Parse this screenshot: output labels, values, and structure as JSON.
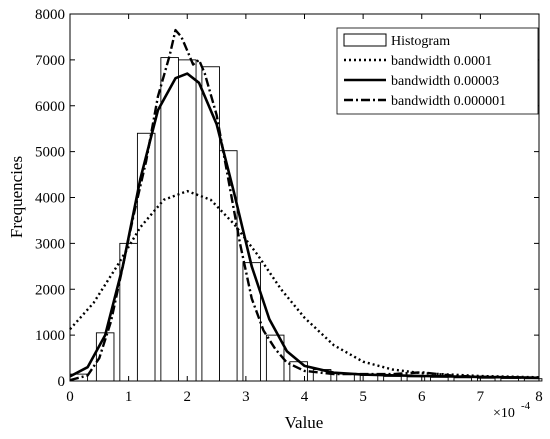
{
  "chart_data": {
    "type": "bar",
    "title": "",
    "xlabel": "Value",
    "ylabel": "Frequencies",
    "x_exponent_label": "×10",
    "x_exponent_power": "-4",
    "xlim": [
      0,
      8
    ],
    "ylim": [
      0,
      8000
    ],
    "x_ticks": [
      0,
      1,
      2,
      3,
      4,
      5,
      6,
      7,
      8
    ],
    "y_ticks": [
      0,
      1000,
      2000,
      3000,
      4000,
      5000,
      6000,
      7000,
      8000
    ],
    "legend_position": "top-right",
    "legend": [
      {
        "label": "Histogram",
        "style": "bar"
      },
      {
        "label": "bandwidth 0.0001",
        "style": "dotted"
      },
      {
        "label": "bandwidth 0.00003",
        "style": "solid"
      },
      {
        "label": "bandwidth 0.000001",
        "style": "dashdot"
      }
    ],
    "histogram": {
      "bin_width": 0.3,
      "bin_starts": [
        0.0,
        0.45,
        0.85,
        1.15,
        1.55,
        1.85,
        2.25,
        2.55,
        2.95,
        3.35,
        3.75,
        4.15,
        4.55,
        4.95,
        5.35,
        5.75,
        6.15,
        6.55,
        6.95,
        7.35,
        7.75
      ],
      "values": [
        150,
        1050,
        3000,
        5400,
        7050,
        7000,
        6850,
        5020,
        2580,
        1000,
        420,
        250,
        160,
        120,
        100,
        90,
        80,
        70,
        60,
        55,
        50
      ]
    },
    "series": [
      {
        "name": "bandwidth 0.0001",
        "style": "dotted",
        "x": [
          0,
          0.4,
          0.8,
          1.2,
          1.6,
          2.0,
          2.4,
          2.8,
          3.2,
          3.6,
          4.0,
          4.5,
          5.0,
          5.5,
          6.0,
          7.0,
          8.0
        ],
        "y": [
          1130,
          1700,
          2500,
          3350,
          3950,
          4140,
          3950,
          3420,
          2750,
          2000,
          1380,
          780,
          420,
          250,
          170,
          110,
          80
        ]
      },
      {
        "name": "bandwidth 0.00003",
        "style": "solid",
        "x": [
          0,
          0.3,
          0.6,
          0.9,
          1.2,
          1.5,
          1.8,
          2.0,
          2.2,
          2.5,
          2.8,
          3.1,
          3.4,
          3.7,
          4.0,
          4.5,
          5.0,
          6.0,
          7.0,
          8.0
        ],
        "y": [
          100,
          300,
          1000,
          2500,
          4400,
          5900,
          6600,
          6700,
          6500,
          5600,
          4100,
          2500,
          1350,
          650,
          330,
          180,
          140,
          110,
          90,
          70
        ]
      },
      {
        "name": "bandwidth 0.000001",
        "style": "dashdot",
        "x": [
          0,
          0.3,
          0.5,
          0.7,
          0.9,
          1.0,
          1.1,
          1.3,
          1.5,
          1.7,
          1.8,
          1.9,
          2.0,
          2.1,
          2.2,
          2.3,
          2.5,
          2.7,
          2.9,
          3.1,
          3.3,
          3.5,
          3.7,
          4.0,
          4.5,
          5.0,
          5.5,
          6.0,
          6.5,
          7.0,
          7.5,
          8.0
        ],
        "y": [
          20,
          120,
          500,
          1300,
          2500,
          3100,
          3700,
          4800,
          6200,
          7100,
          7650,
          7500,
          7200,
          6900,
          7000,
          6700,
          5800,
          4400,
          3000,
          1800,
          1100,
          700,
          400,
          220,
          150,
          150,
          150,
          190,
          120,
          90,
          80,
          70
        ]
      }
    ]
  }
}
